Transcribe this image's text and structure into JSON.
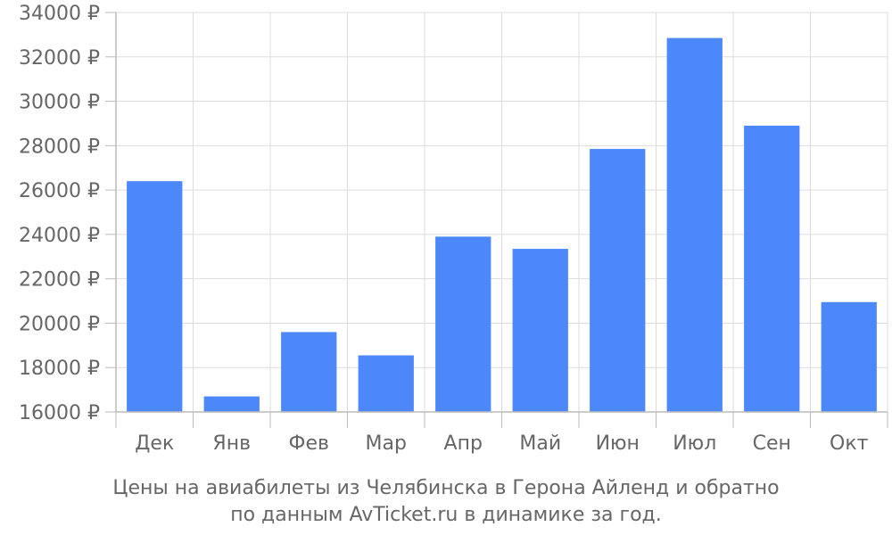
{
  "colors": {
    "bar": "#4d88fa",
    "grid": "#dddddd",
    "axis": "#bbbbbb",
    "text": "#666666"
  },
  "caption": {
    "line1": "Цены на авиабилеты из Челябинска в Герона Айленд и обратно",
    "line2": "по данным AvTicket.ru в динамике за год."
  },
  "chart_data": {
    "type": "bar",
    "title": "",
    "xlabel": "",
    "ylabel": "",
    "categories": [
      "Дек",
      "Янв",
      "Фев",
      "Мар",
      "Апр",
      "Май",
      "Июн",
      "Июл",
      "Сен",
      "Окт"
    ],
    "values": [
      26400,
      16700,
      19600,
      18550,
      23900,
      23350,
      27850,
      32850,
      28900,
      20950
    ],
    "ylim": [
      16000,
      34000
    ],
    "y_ticks": [
      "16000 ₽",
      "18000 ₽",
      "20000 ₽",
      "22000 ₽",
      "24000 ₽",
      "26000 ₽",
      "28000 ₽",
      "30000 ₽",
      "32000 ₽",
      "34000 ₽"
    ],
    "grid": true,
    "legend": "none"
  }
}
